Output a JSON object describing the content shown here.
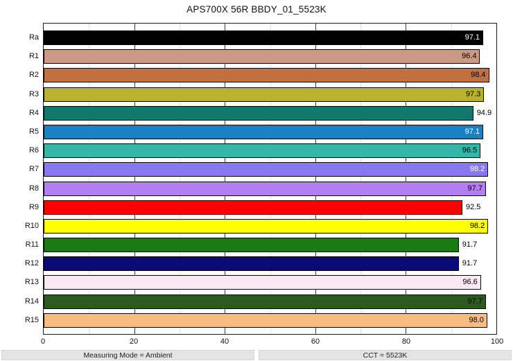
{
  "title": "APS700X 56R BBDY_01_5523K",
  "chart_data": {
    "type": "bar",
    "orientation": "horizontal",
    "title": "APS700X 56R BBDY_01_5523K",
    "categories": [
      "Ra",
      "R1",
      "R2",
      "R3",
      "R4",
      "R5",
      "R6",
      "R7",
      "R8",
      "R9",
      "R10",
      "R11",
      "R12",
      "R13",
      "R14",
      "R15"
    ],
    "values": [
      97.1,
      96.4,
      98.4,
      97.3,
      94.9,
      97.1,
      96.5,
      98.2,
      97.7,
      92.5,
      98.2,
      91.7,
      91.7,
      96.6,
      97.7,
      98.0
    ],
    "bar_colors": [
      "#000000",
      "#ca9a87",
      "#c2703d",
      "#b8b32a",
      "#10786c",
      "#1a80c4",
      "#35b5a5",
      "#8878f0",
      "#b27ef2",
      "#ff0000",
      "#ffff00",
      "#1a7a14",
      "#0a0a78",
      "#fae8f4",
      "#2d5a1e",
      "#f8bc80"
    ],
    "value_label_inside": [
      true,
      true,
      true,
      true,
      false,
      true,
      true,
      true,
      true,
      false,
      true,
      false,
      false,
      true,
      true,
      true
    ],
    "value_label_colors": [
      "#ffffff",
      "#000000",
      "#000000",
      "#000000",
      "#000000",
      "#ffffff",
      "#000000",
      "#ffffff",
      "#000000",
      "#000000",
      "#000000",
      "#000000",
      "#000000",
      "#000000",
      "#000000",
      "#000000"
    ],
    "xlim": [
      0,
      100
    ],
    "xticks": [
      0,
      20,
      40,
      60,
      80,
      100
    ],
    "minor_ticks": [
      10,
      30,
      50,
      70,
      90
    ],
    "grid": "vertical",
    "legend": "none",
    "xlabel": "",
    "ylabel": ""
  },
  "footer": {
    "measuring_mode": "Measuring Mode = Ambient",
    "cct": "CCT = 5523K"
  }
}
